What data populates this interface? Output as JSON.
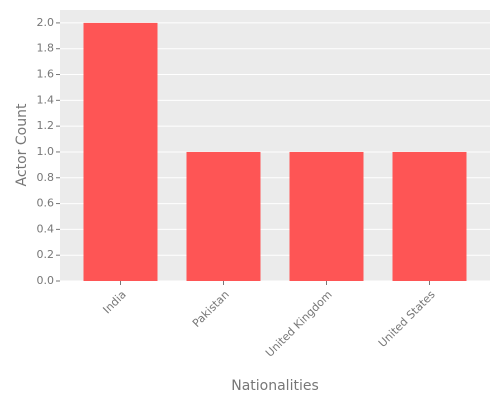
{
  "chart_data": {
    "type": "bar",
    "x_label": "Nationalities",
    "y_label": "Actor Count",
    "categories": [
      "India",
      "Pakistan",
      "United Kingdom",
      "United States"
    ],
    "values": [
      2,
      1,
      1,
      1
    ],
    "color": "#fe5555",
    "ylim": [
      0,
      2.1
    ],
    "yticks": [
      {
        "value": 0,
        "label": "0.0"
      },
      0.2,
      0.4,
      0.6,
      0.8,
      {
        "value": 1,
        "label": "1.0"
      },
      1.2,
      1.4,
      1.6,
      1.8,
      {
        "value": 2,
        "label": "2.0"
      }
    ],
    "grid": true
  }
}
